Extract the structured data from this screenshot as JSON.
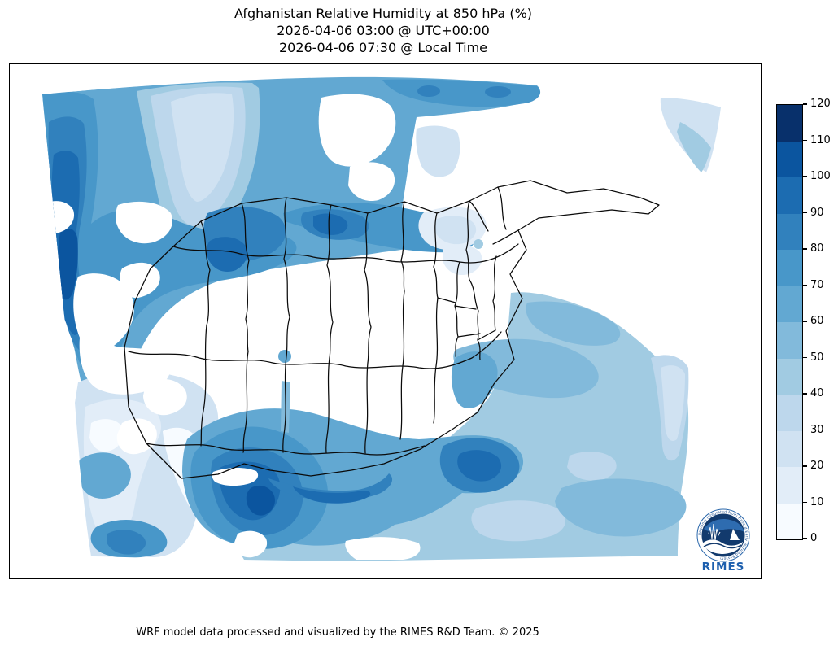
{
  "title": {
    "line1": "Afghanistan Relative Humidity at 850 hPa (%)",
    "line2": "2026-04-06 03:00 @ UTC+00:00",
    "line3": "2026-04-06 07:30 @ Local Time"
  },
  "footer": {
    "credit": "WRF model data processed and visualized by the RIMES R&D Team. © 2025"
  },
  "colorbar": {
    "min": 0,
    "max": 120,
    "tick_labels": [
      "0",
      "10",
      "20",
      "30",
      "40",
      "50",
      "60",
      "70",
      "80",
      "90",
      "100",
      "110",
      "120"
    ],
    "colors": [
      "#f7fbff",
      "#e2edf8",
      "#d0e2f2",
      "#bdd7ec",
      "#a1cbe2",
      "#82badb",
      "#62a8d2",
      "#4897c9",
      "#3181bd",
      "#1c6cb1",
      "#0b559f",
      "#08306b"
    ]
  },
  "logo": {
    "org": "RIMES",
    "ring_text": "Regional Integrated Multi-Hazard Early Warning System"
  },
  "chart_data": {
    "type": "heatmap",
    "title": "Afghanistan Relative Humidity at 850 hPa (%)",
    "valid_time_utc": "2026-04-06 03:00 @ UTC+00:00",
    "valid_time_local": "2026-04-06 07:30 @ Local Time",
    "model": "WRF",
    "variable": "Relative Humidity",
    "pressure_level": "850 hPa",
    "units": "%",
    "colorbar_levels": [
      0,
      10,
      20,
      30,
      40,
      50,
      60,
      70,
      80,
      90,
      100,
      110,
      120
    ],
    "palette": [
      "#f7fbff",
      "#e2edf8",
      "#d0e2f2",
      "#bdd7ec",
      "#a1cbe2",
      "#82badb",
      "#62a8d2",
      "#4897c9",
      "#3181bd",
      "#1c6cb1",
      "#0b559f",
      "#08306b"
    ],
    "legend_position": "right",
    "basemap": "Afghanistan national and provincial boundaries over curvilinear WRF domain",
    "regions_estimated_rh": [
      {
        "region": "northwest quadrant (Turkmenistan border)",
        "rh_percent": "60-100"
      },
      {
        "region": "far west edge band",
        "rh_percent": "80-110"
      },
      {
        "region": "north strip along border provinces",
        "rh_percent": "70-100"
      },
      {
        "region": "top-center pale pocket",
        "rh_percent": "20-50"
      },
      {
        "region": "central Afghanistan highlands",
        "rh_percent": "0-10 (white/masked)"
      },
      {
        "region": "northeast / Wakhan corridor",
        "rh_percent": "0-30"
      },
      {
        "region": "upper-right small pocket",
        "rh_percent": "20-50"
      },
      {
        "region": "southeast plains",
        "rh_percent": "30-60"
      },
      {
        "region": "southern Helmand-Kandahar cores",
        "rh_percent": "70-110"
      },
      {
        "region": "southwest corner",
        "rh_percent": "0-30 with masked holes"
      }
    ]
  }
}
